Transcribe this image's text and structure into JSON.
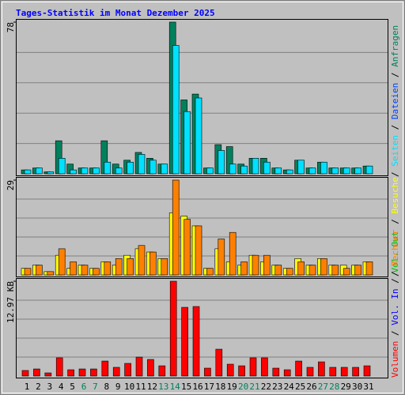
{
  "chart_data": [
    {
      "type": "bar",
      "title": "Tages-Statistik im Monat Dezember 2025",
      "ylim": [
        0,
        78
      ],
      "yticks": [
        78
      ],
      "series": [
        {
          "name": "Anfragen",
          "color": "#00805c",
          "values": [
            2,
            3,
            1,
            17,
            5,
            3,
            3,
            17,
            5,
            7,
            11,
            8,
            5,
            78,
            38,
            41,
            3,
            15,
            14,
            5,
            8,
            8,
            3,
            2,
            7,
            3,
            6,
            3,
            3,
            3,
            4
          ]
        },
        {
          "name": "Seiten",
          "color": "#00e0ff",
          "values": [
            2,
            3,
            1,
            8,
            2,
            3,
            3,
            6,
            3,
            6,
            10,
            7,
            5,
            66,
            32,
            39,
            3,
            12,
            5,
            4,
            8,
            6,
            3,
            2,
            7,
            3,
            6,
            3,
            3,
            3,
            4
          ]
        }
      ],
      "legend_only": [
        {
          "name": "Dateien",
          "color": "#0040ff"
        }
      ]
    },
    {
      "type": "bar",
      "ylim": [
        0,
        29
      ],
      "yticks": [
        29
      ],
      "series": [
        {
          "name": "Besuche",
          "color": "#ffff00",
          "values": [
            2,
            3,
            1,
            6,
            2,
            3,
            2,
            4,
            3,
            6,
            8,
            7,
            5,
            19,
            18,
            15,
            2,
            8,
            4,
            3,
            6,
            4,
            3,
            2,
            5,
            3,
            5,
            3,
            3,
            3,
            4
          ]
        },
        {
          "name": "Rechner",
          "color": "#ff8000",
          "values": [
            2,
            3,
            1,
            8,
            4,
            3,
            2,
            4,
            5,
            5,
            9,
            7,
            5,
            29,
            17,
            15,
            2,
            11,
            13,
            4,
            6,
            6,
            3,
            2,
            4,
            3,
            5,
            3,
            2,
            3,
            4
          ]
        }
      ]
    },
    {
      "type": "bar",
      "ylim": [
        0,
        12.97
      ],
      "yticks": [
        {
          "value": 12.97,
          "label": "12.97 KB"
        }
      ],
      "series": [
        {
          "name": "Volumen",
          "color": "#ff0000",
          "values": [
            0.76,
            0.97,
            0.43,
            2.49,
            0.86,
            0.97,
            0.97,
            2.05,
            1.19,
            1.73,
            2.59,
            2.27,
            1.4,
            12.97,
            9.4,
            9.51,
            1.08,
            3.67,
            1.62,
            1.4,
            2.49,
            2.49,
            1.08,
            0.86,
            2.05,
            1.19,
            1.94,
            1.19,
            1.19,
            1.19,
            1.4
          ]
        }
      ],
      "legend_only": [
        {
          "name": "Vol. In",
          "color": "#0000ff"
        },
        {
          "name": "Vol. Out",
          "color": "#00c000"
        }
      ],
      "legend_separator": " / ",
      "categories": [
        "1",
        "2",
        "3",
        "4",
        "5",
        "6",
        "7",
        "8",
        "9",
        "10",
        "11",
        "12",
        "13",
        "14",
        "15",
        "16",
        "17",
        "18",
        "19",
        "20",
        "21",
        "22",
        "23",
        "24",
        "25",
        "26",
        "27",
        "28",
        "29",
        "30",
        "31"
      ],
      "category_colors": [
        "#000000",
        "#000000",
        "#000000",
        "#000000",
        "#000000",
        "#00805c",
        "#00805c",
        "#000000",
        "#000000",
        "#000000",
        "#000000",
        "#000000",
        "#00805c",
        "#00805c",
        "#000000",
        "#000000",
        "#000000",
        "#000000",
        "#000000",
        "#00805c",
        "#00805c",
        "#000000",
        "#000000",
        "#000000",
        "#000000",
        "#000000",
        "#00805c",
        "#00805c",
        "#000000",
        "#000000",
        "#000000"
      ]
    }
  ]
}
